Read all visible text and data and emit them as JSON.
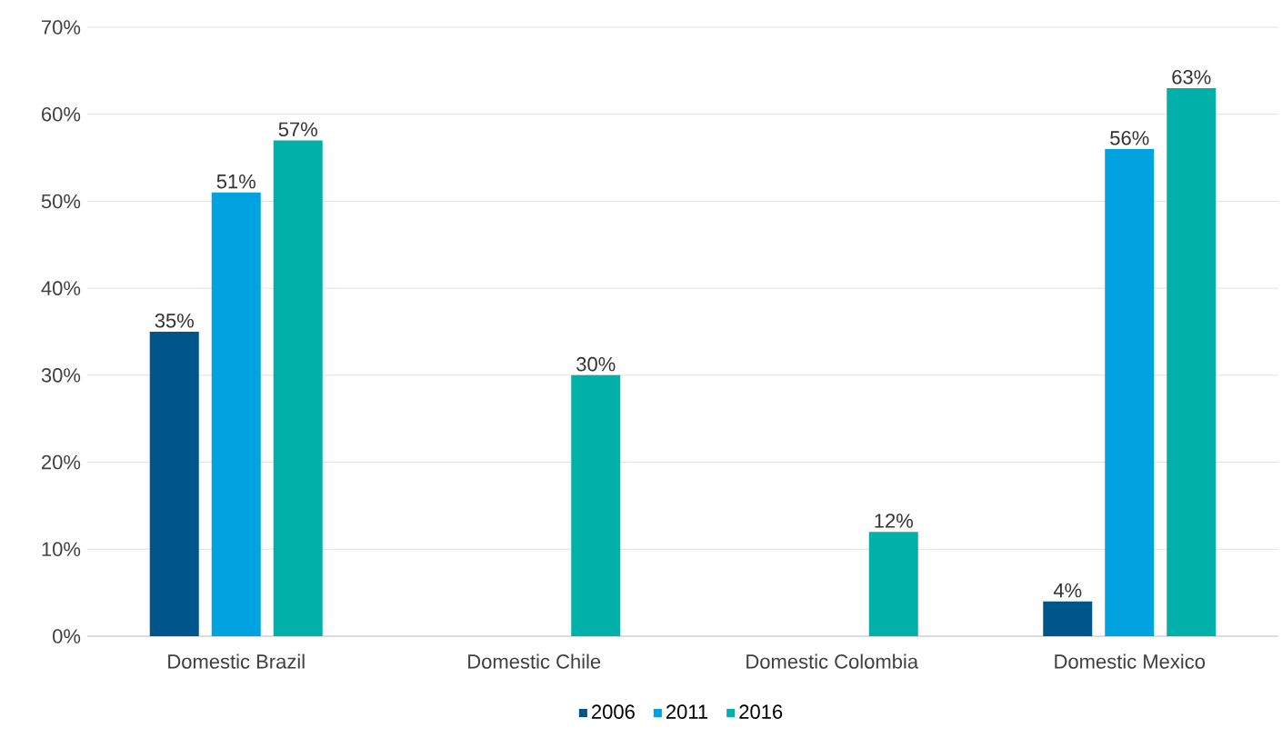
{
  "chart_data": {
    "type": "bar",
    "categories": [
      "Domestic Brazil",
      "Domestic Chile",
      "Domestic Colombia",
      "Domestic Mexico"
    ],
    "series": [
      {
        "name": "2006",
        "color": "#00568a",
        "values": [
          35,
          null,
          null,
          4
        ],
        "value_labels": [
          "35%",
          null,
          null,
          "4%"
        ]
      },
      {
        "name": "2011",
        "color": "#00a3e0",
        "values": [
          51,
          null,
          null,
          56
        ],
        "value_labels": [
          "51%",
          null,
          null,
          "56%"
        ]
      },
      {
        "name": "2016",
        "color": "#00b0a9",
        "values": [
          57,
          30,
          12,
          63
        ],
        "value_labels": [
          "57%",
          "30%",
          "12%",
          "63%"
        ]
      }
    ],
    "ylim": [
      0,
      70
    ],
    "yticks": [
      {
        "value": 0,
        "label": "0%"
      },
      {
        "value": 10,
        "label": "10%"
      },
      {
        "value": 20,
        "label": "20%"
      },
      {
        "value": 30,
        "label": "30%"
      },
      {
        "value": 40,
        "label": "40%"
      },
      {
        "value": 50,
        "label": "50%"
      },
      {
        "value": 60,
        "label": "60%"
      },
      {
        "value": 70,
        "label": "70%"
      }
    ],
    "grid": "y",
    "legend": "bottom"
  }
}
